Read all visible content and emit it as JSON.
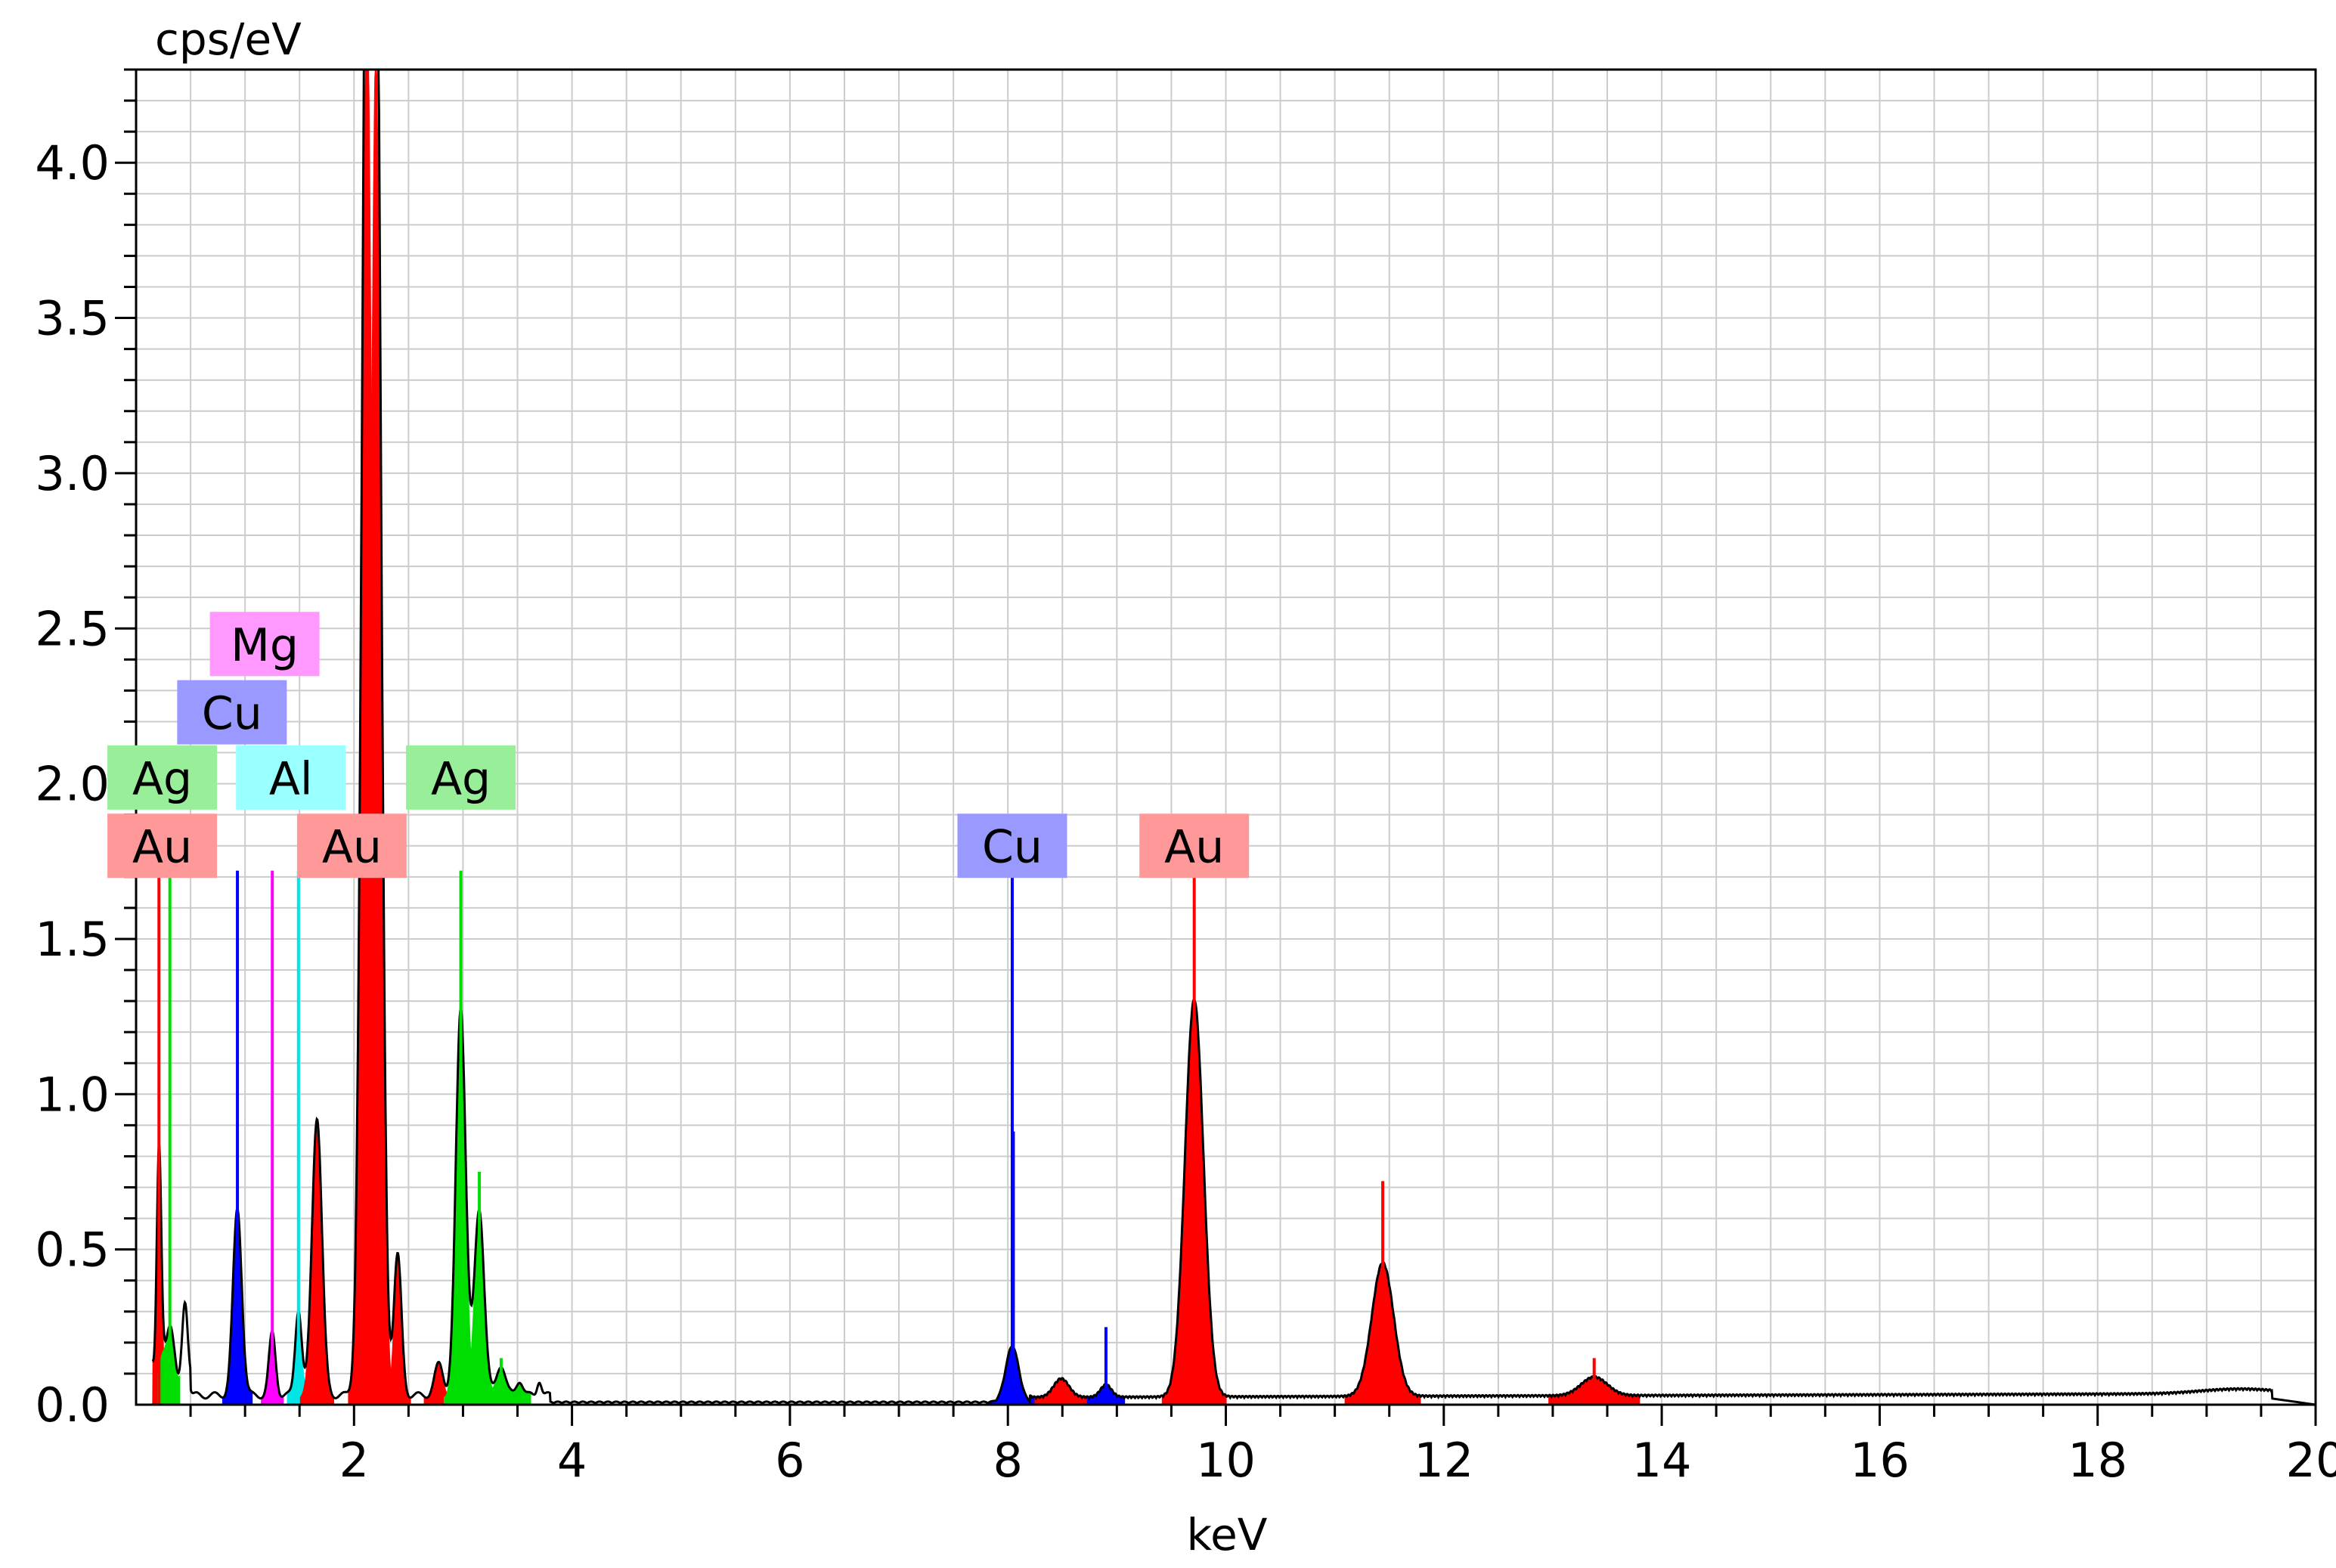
{
  "chart_data": {
    "type": "area",
    "ylabel": "cps/eV",
    "xlabel": "keV",
    "xlim": [
      0,
      20
    ],
    "ylim": [
      0,
      4.3
    ],
    "x_ticks": [
      2,
      4,
      6,
      8,
      10,
      12,
      14,
      16,
      18,
      20
    ],
    "x_tick_labels": [
      "2",
      "4",
      "6",
      "8",
      "10",
      "12",
      "14",
      "16",
      "18",
      "20"
    ],
    "y_ticks": [
      0.0,
      0.5,
      1.0,
      1.5,
      2.0,
      2.5,
      3.0,
      3.5,
      4.0
    ],
    "y_tick_labels": [
      "0.0",
      "0.5",
      "1.0",
      "1.5",
      "2.0",
      "2.5",
      "3.0",
      "3.5",
      "4.0"
    ],
    "grid": true,
    "colors": {
      "spectrum": "#000000",
      "Au": "#ff0000",
      "Ag": "#00dd00",
      "Cu": "#0000ff",
      "Mg": "#ff00ff",
      "Al": "#00e5e5"
    },
    "label_colors": {
      "Au": "#ff9999",
      "Ag": "#99ee99",
      "Cu": "#9999ff",
      "Mg": "#ff99ff",
      "Al": "#99ffff"
    },
    "spectrum_peaks": [
      {
        "element": "Au",
        "center": 0.21,
        "height": 0.72,
        "width": 0.02
      },
      {
        "element": "Ag",
        "center": 0.3,
        "height": 0.15,
        "width": 0.03
      },
      {
        "element": "none",
        "center": 0.45,
        "height": 0.18,
        "width": 0.025
      },
      {
        "element": "Cu",
        "center": 0.93,
        "height": 0.6,
        "width": 0.04
      },
      {
        "element": "Mg",
        "center": 1.25,
        "height": 0.2,
        "width": 0.03
      },
      {
        "element": "Al",
        "center": 1.49,
        "height": 0.28,
        "width": 0.03
      },
      {
        "element": "Au",
        "center": 1.66,
        "height": 0.9,
        "width": 0.045
      },
      {
        "element": "Au",
        "center": 2.12,
        "height": 4.6,
        "width": 0.05
      },
      {
        "element": "Au",
        "center": 2.2,
        "height": 4.4,
        "width": 0.05
      },
      {
        "element": "Au",
        "center": 2.4,
        "height": 0.45,
        "width": 0.035
      },
      {
        "element": "Au",
        "center": 2.78,
        "height": 0.1,
        "width": 0.04
      },
      {
        "element": "Ag",
        "center": 2.98,
        "height": 1.25,
        "width": 0.045
      },
      {
        "element": "Ag",
        "center": 3.15,
        "height": 0.6,
        "width": 0.045
      },
      {
        "element": "Ag",
        "center": 3.35,
        "height": 0.1,
        "width": 0.04
      },
      {
        "element": "Ag",
        "center": 3.52,
        "height": 0.05,
        "width": 0.03
      },
      {
        "element": "none",
        "center": 3.7,
        "height": 0.05,
        "width": 0.02
      },
      {
        "element": "Cu",
        "center": 8.04,
        "height": 0.18,
        "width": 0.06
      },
      {
        "element": "Au",
        "center": 8.49,
        "height": 0.06,
        "width": 0.07
      },
      {
        "element": "Cu",
        "center": 8.9,
        "height": 0.04,
        "width": 0.05
      },
      {
        "element": "Au",
        "center": 9.71,
        "height": 1.28,
        "width": 0.085
      },
      {
        "element": "Au",
        "center": 11.44,
        "height": 0.43,
        "width": 0.1
      },
      {
        "element": "Au",
        "center": 13.38,
        "height": 0.06,
        "width": 0.12
      }
    ],
    "element_lines": [
      {
        "element": "Au",
        "energy": 0.21,
        "height": 1.72
      },
      {
        "element": "Ag",
        "energy": 0.31,
        "height": 1.72
      },
      {
        "element": "Cu",
        "energy": 0.93,
        "height": 1.72
      },
      {
        "element": "Mg",
        "energy": 1.25,
        "height": 1.72
      },
      {
        "element": "Al",
        "energy": 1.49,
        "height": 1.72
      },
      {
        "element": "Ag",
        "energy": 2.98,
        "height": 1.72
      },
      {
        "element": "Ag",
        "energy": 3.15,
        "height": 0.75
      },
      {
        "element": "Ag",
        "energy": 3.35,
        "height": 0.15
      },
      {
        "element": "Cu",
        "energy": 8.04,
        "height": 1.72
      },
      {
        "element": "Cu",
        "energy": 8.05,
        "height": 0.88
      },
      {
        "element": "Cu",
        "energy": 8.9,
        "height": 0.25
      },
      {
        "element": "Au",
        "energy": 9.71,
        "height": 1.72
      },
      {
        "element": "Au",
        "energy": 11.44,
        "height": 0.72
      },
      {
        "element": "Au",
        "energy": 13.38,
        "height": 0.15
      }
    ],
    "peak_labels": [
      {
        "text": "Mg",
        "element": "Mg",
        "energy": 1.18,
        "level": 2.45
      },
      {
        "text": "Cu",
        "element": "Cu",
        "energy": 0.88,
        "level": 2.23
      },
      {
        "text": "Ag",
        "element": "Ag",
        "energy": 0.24,
        "level": 2.02
      },
      {
        "text": "Al",
        "element": "Al",
        "energy": 1.42,
        "level": 2.02
      },
      {
        "text": "Ag",
        "element": "Ag",
        "energy": 2.98,
        "level": 2.02
      },
      {
        "text": "Au",
        "element": "Au",
        "energy": 0.24,
        "level": 1.8
      },
      {
        "text": "Au",
        "element": "Au",
        "energy": 1.98,
        "level": 1.8
      },
      {
        "text": "Cu",
        "element": "Cu",
        "energy": 8.04,
        "level": 1.8
      },
      {
        "text": "Au",
        "element": "Au",
        "energy": 9.71,
        "level": 1.8
      }
    ]
  }
}
